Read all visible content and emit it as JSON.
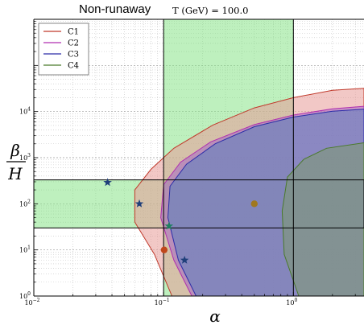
{
  "chart_data": {
    "type": "area",
    "title": "Non-runaway",
    "subtitle": "T (GeV) = 100.0",
    "xlabel": "α",
    "ylabel_numerator": "β",
    "ylabel_denominator": "H",
    "x_scale": "log",
    "y_scale": "log",
    "xlim": [
      0.01,
      3.5
    ],
    "ylim": [
      1,
      1000000
    ],
    "grid": true,
    "legend_placement": "top-left",
    "x_ticks": [
      {
        "value": 0.01,
        "base": "10",
        "exp": "−2"
      },
      {
        "value": 0.1,
        "base": "10",
        "exp": "−1"
      },
      {
        "value": 1,
        "base": "10",
        "exp": "0"
      }
    ],
    "y_ticks": [
      {
        "value": 1,
        "base": "10",
        "exp": "0"
      },
      {
        "value": 10,
        "base": "10",
        "exp": "1"
      },
      {
        "value": 100,
        "base": "10",
        "exp": "2"
      },
      {
        "value": 1000,
        "base": "10",
        "exp": "3"
      },
      {
        "value": 10000,
        "base": "10",
        "exp": "4"
      }
    ],
    "series": [
      {
        "name": "C1",
        "line_color": "#c0392b",
        "fill_color": "#e79a98",
        "region": [
          [
            0.116,
            1
          ],
          [
            0.085,
            8
          ],
          [
            0.06,
            40
          ],
          [
            0.06,
            200
          ],
          [
            0.08,
            560
          ],
          [
            0.12,
            1600
          ],
          [
            0.24,
            5100
          ],
          [
            0.5,
            12000
          ],
          [
            1,
            20000
          ],
          [
            2,
            29000
          ],
          [
            3.5,
            32000
          ],
          [
            3.5,
            1
          ],
          [
            0.116,
            1
          ]
        ]
      },
      {
        "name": "C2",
        "line_color": "#b02fb0",
        "fill_color": "#a566c7",
        "region": [
          [
            0.165,
            1
          ],
          [
            0.12,
            6
          ],
          [
            0.095,
            50
          ],
          [
            0.1,
            260
          ],
          [
            0.135,
            800
          ],
          [
            0.23,
            2200
          ],
          [
            0.5,
            5200
          ],
          [
            1,
            8400
          ],
          [
            2,
            11500
          ],
          [
            3.5,
            13000
          ],
          [
            3.5,
            1
          ],
          [
            0.165,
            1
          ]
        ]
      },
      {
        "name": "C3",
        "line_color": "#2c2ca8",
        "fill_color": "#5a7fbf",
        "region": [
          [
            0.178,
            1
          ],
          [
            0.13,
            6
          ],
          [
            0.108,
            50
          ],
          [
            0.112,
            240
          ],
          [
            0.15,
            720
          ],
          [
            0.25,
            2000
          ],
          [
            0.5,
            4700
          ],
          [
            1,
            7600
          ],
          [
            2,
            10200
          ],
          [
            3.5,
            11200
          ],
          [
            3.5,
            1
          ],
          [
            0.178,
            1
          ]
        ]
      },
      {
        "name": "C4",
        "line_color": "#4a7a2a",
        "fill_color": "#7d9a6e",
        "region": [
          [
            1.1,
            1
          ],
          [
            0.85,
            8
          ],
          [
            0.82,
            70
          ],
          [
            0.9,
            380
          ],
          [
            1.2,
            920
          ],
          [
            1.8,
            1600
          ],
          [
            3.5,
            2100
          ],
          [
            3.5,
            1
          ],
          [
            1.1,
            1
          ]
        ]
      }
    ],
    "bands": [
      {
        "orientation": "vertical",
        "x_range": [
          0.1,
          1.0
        ],
        "color": "#7ee27e"
      },
      {
        "orientation": "horizontal",
        "y_range": [
          30,
          330
        ],
        "color": "#7ee27e"
      }
    ],
    "markers": [
      {
        "symbol": "star",
        "x": 0.037,
        "y": 290,
        "color": "#1f3f7a"
      },
      {
        "symbol": "star",
        "x": 0.065,
        "y": 100,
        "color": "#1f3f7a"
      },
      {
        "symbol": "star",
        "x": 0.11,
        "y": 33,
        "color": "#1f8060"
      },
      {
        "symbol": "star",
        "x": 0.145,
        "y": 6,
        "color": "#1f3f7a"
      },
      {
        "symbol": "circle",
        "x": 0.101,
        "y": 10,
        "color": "#c0471b"
      },
      {
        "symbol": "circle",
        "x": 0.5,
        "y": 100,
        "color": "#a0781e"
      }
    ]
  }
}
